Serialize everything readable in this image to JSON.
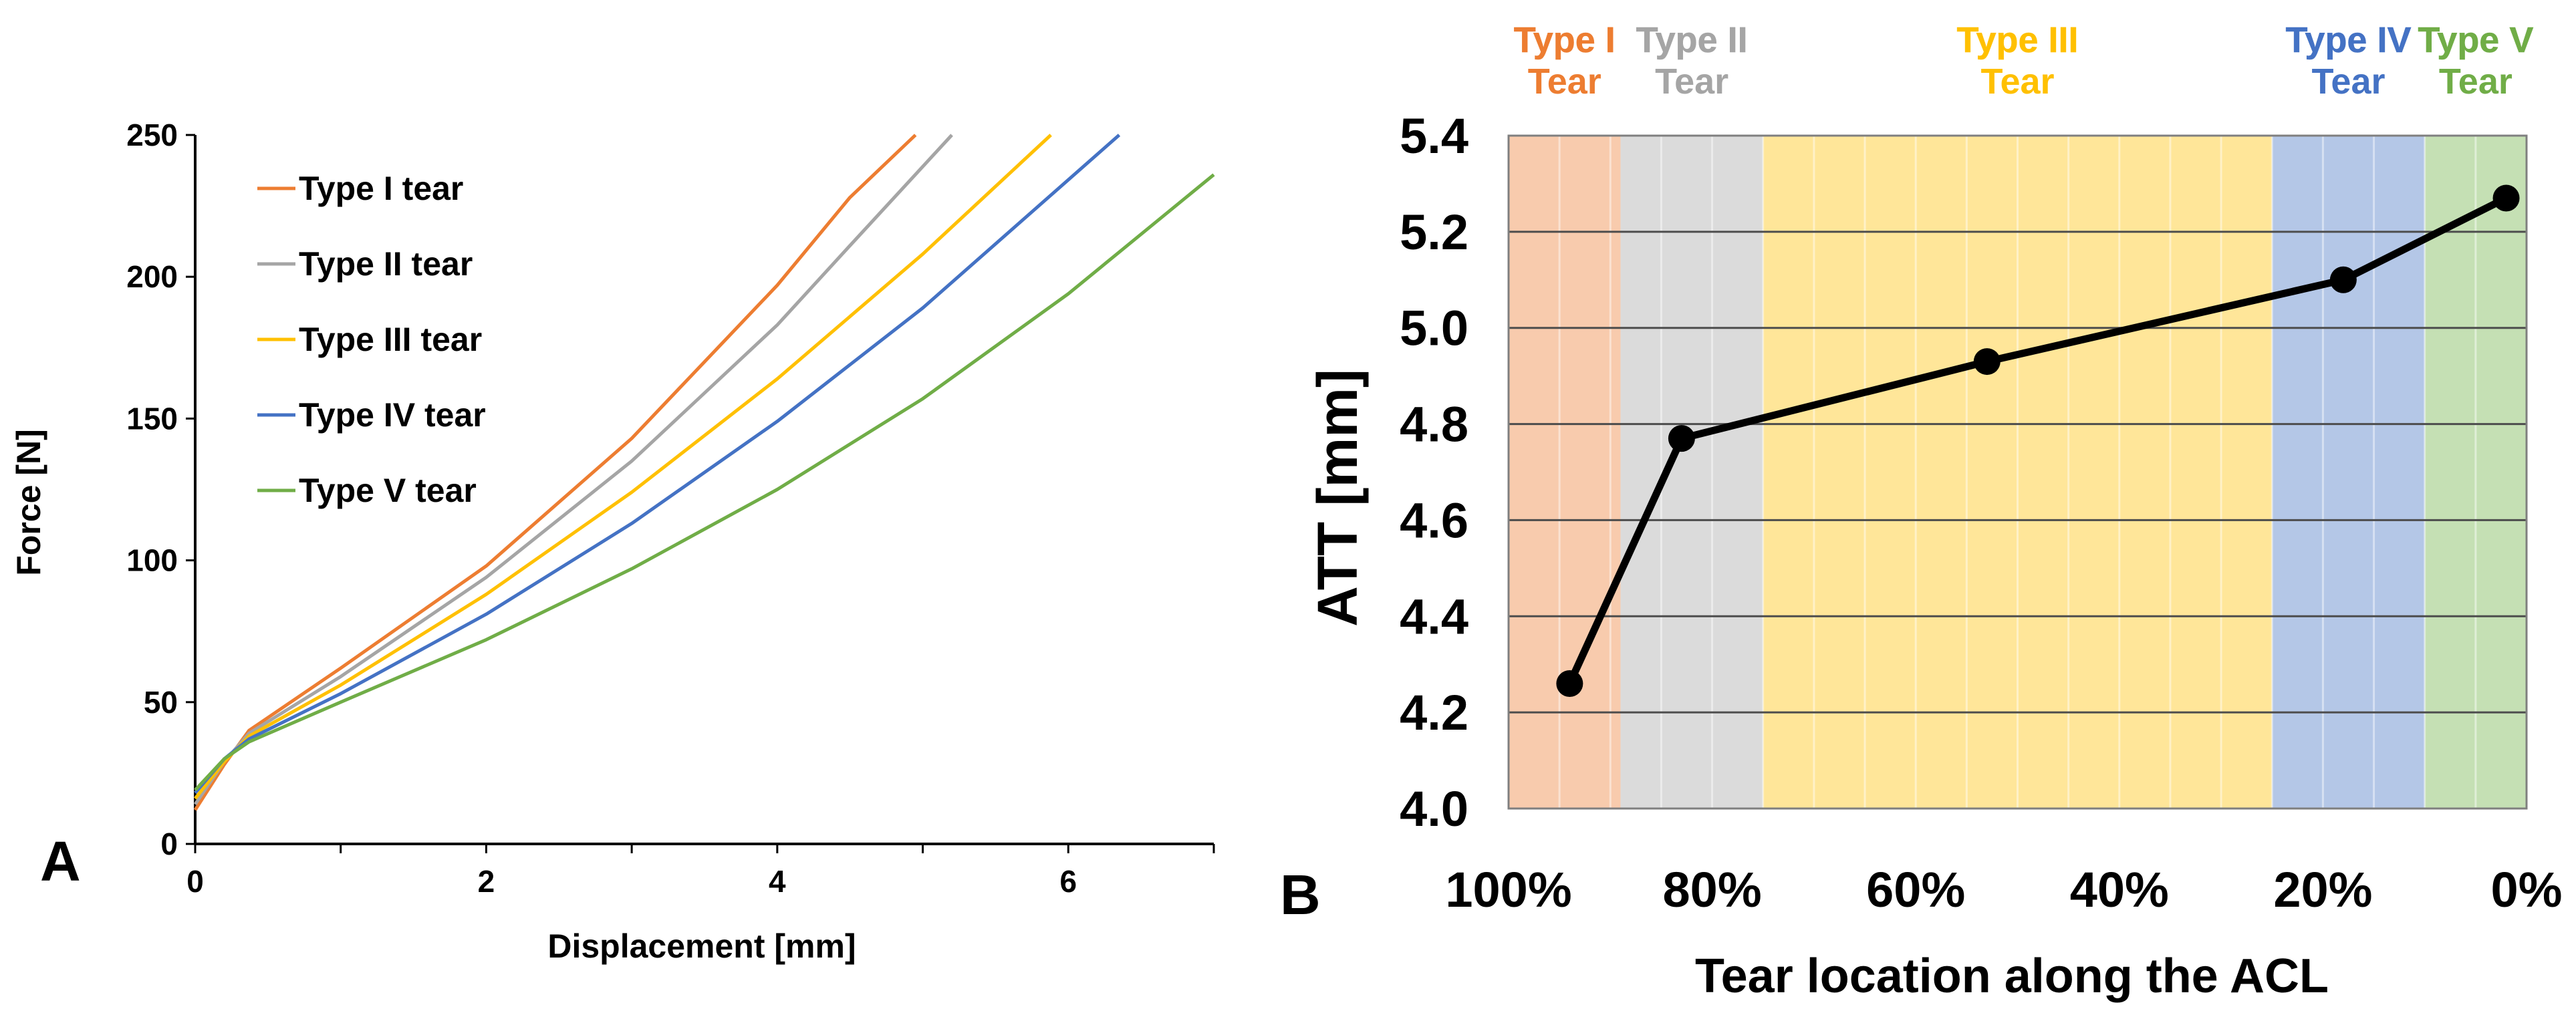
{
  "chart_data": [
    {
      "panel": "A",
      "type": "line",
      "title": "",
      "xlabel": "Displacement [mm]",
      "ylabel": "Force [N]",
      "xlim": [
        0,
        7
      ],
      "ylim": [
        0,
        250
      ],
      "xticks": [
        "0",
        "2",
        "4",
        "6"
      ],
      "xtick_values": [
        0,
        2,
        4,
        6
      ],
      "yticks": [
        "0",
        "50",
        "100",
        "150",
        "200",
        "250"
      ],
      "ytick_values": [
        0,
        50,
        100,
        150,
        200,
        250
      ],
      "grid": false,
      "legend_position": "top-left",
      "series": [
        {
          "name": "Type I tear",
          "color": "#ED7D31",
          "x": [
            0,
            0.2,
            0.37,
            1,
            2,
            3,
            4,
            4.5,
            4.95
          ],
          "y": [
            12,
            28,
            40,
            62,
            98,
            143,
            197,
            228,
            250
          ]
        },
        {
          "name": "Type II tear",
          "color": "#A5A5A5",
          "x": [
            0,
            0.2,
            0.37,
            1,
            2,
            3,
            4,
            4.5,
            5.2
          ],
          "y": [
            14,
            29,
            39,
            59,
            94,
            135,
            183,
            211,
            250
          ]
        },
        {
          "name": "Type III tear",
          "color": "#FFC000",
          "x": [
            0,
            0.2,
            0.37,
            1,
            2,
            3,
            4,
            5,
            5.88
          ],
          "y": [
            16,
            29,
            38,
            56,
            88,
            124,
            164,
            208,
            250
          ]
        },
        {
          "name": "Type IV tear",
          "color": "#4472C4",
          "x": [
            0,
            0.2,
            0.37,
            1,
            2,
            3,
            4,
            5,
            6.35
          ],
          "y": [
            18,
            30,
            37,
            53,
            81,
            113,
            149,
            189,
            250
          ]
        },
        {
          "name": "Type V tear",
          "color": "#70AD47",
          "x": [
            0,
            0.2,
            0.37,
            1,
            2,
            3,
            4,
            5,
            6,
            7
          ],
          "y": [
            19,
            30,
            36,
            50,
            72,
            97,
            125,
            157,
            194,
            236
          ]
        }
      ]
    },
    {
      "panel": "B",
      "type": "line",
      "title": "",
      "xlabel": "Tear location along the ACL",
      "ylabel": "ATT [mm]",
      "x_reversed": true,
      "xlim": [
        100,
        0
      ],
      "ylim": [
        4.0,
        5.4
      ],
      "xticks": [
        "100%",
        "80%",
        "60%",
        "40%",
        "20%",
        "0%"
      ],
      "xtick_values": [
        100,
        80,
        60,
        40,
        20,
        0
      ],
      "yticks": [
        "4.0",
        "4.2",
        "4.4",
        "4.6",
        "4.8",
        "5.0",
        "5.2",
        "5.4"
      ],
      "ytick_values": [
        4.0,
        4.2,
        4.4,
        4.6,
        4.8,
        5.0,
        5.2,
        5.4
      ],
      "grid": true,
      "series": [
        {
          "name": "ATT",
          "color": "#000000",
          "x": [
            94,
            83,
            53,
            18,
            2
          ],
          "y": [
            4.26,
            4.77,
            4.93,
            5.1,
            5.27
          ]
        }
      ],
      "regions": [
        {
          "label_line1": "Type I",
          "label_line2": "Tear",
          "from": 100,
          "to": 89,
          "color": "#F8CBAD",
          "text_color": "#ED7D31"
        },
        {
          "label_line1": "Type II",
          "label_line2": "Tear",
          "from": 89,
          "to": 75,
          "color": "#DBDBDB",
          "text_color": "#A5A5A5"
        },
        {
          "label_line1": "Type III",
          "label_line2": "Tear",
          "from": 75,
          "to": 25,
          "color": "#FFE699",
          "text_color": "#FFC000"
        },
        {
          "label_line1": "Type IV",
          "label_line2": "Tear",
          "from": 25,
          "to": 10,
          "color": "#B4C7E7",
          "text_color": "#4472C4"
        },
        {
          "label_line1": "Type V",
          "label_line2": "Tear",
          "from": 10,
          "to": 0,
          "color": "#C5E0B4",
          "text_color": "#70AD47"
        }
      ]
    }
  ],
  "panel_labels": {
    "a": "A",
    "b": "B"
  }
}
